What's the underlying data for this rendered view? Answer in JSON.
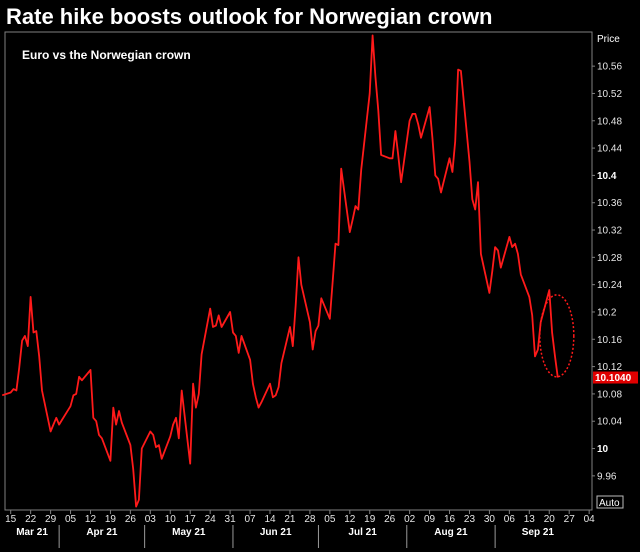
{
  "title": "Rate hike boosts outlook for Norwegian crown",
  "chart_data": {
    "type": "line",
    "annotation": "Euro vs the Norwegian crown",
    "y_axis_title": "Price",
    "ylim": [
      9.91,
      10.61
    ],
    "y_ticks": [
      "9.96",
      "10",
      "10.04",
      "10.08",
      "10.12",
      "10.16",
      "10.2",
      "10.24",
      "10.28",
      "10.32",
      "10.36",
      "10.4",
      "10.44",
      "10.48",
      "10.52",
      "10.56"
    ],
    "y_major_ticks": [
      "10",
      "10.4"
    ],
    "last_value": 10.104,
    "last_value_label": "10.1040",
    "x_start": "2021-03-13",
    "x_end": "2021-10-05",
    "x_ticks": [
      {
        "date": "2021-03-15",
        "label": "15"
      },
      {
        "date": "2021-03-22",
        "label": "22"
      },
      {
        "date": "2021-03-29",
        "label": "29"
      },
      {
        "date": "2021-04-05",
        "label": "05"
      },
      {
        "date": "2021-04-12",
        "label": "12"
      },
      {
        "date": "2021-04-19",
        "label": "19"
      },
      {
        "date": "2021-04-26",
        "label": "26"
      },
      {
        "date": "2021-05-03",
        "label": "03"
      },
      {
        "date": "2021-05-10",
        "label": "10"
      },
      {
        "date": "2021-05-17",
        "label": "17"
      },
      {
        "date": "2021-05-24",
        "label": "24"
      },
      {
        "date": "2021-05-31",
        "label": "31"
      },
      {
        "date": "2021-06-07",
        "label": "07"
      },
      {
        "date": "2021-06-14",
        "label": "14"
      },
      {
        "date": "2021-06-21",
        "label": "21"
      },
      {
        "date": "2021-06-28",
        "label": "28"
      },
      {
        "date": "2021-07-05",
        "label": "05"
      },
      {
        "date": "2021-07-12",
        "label": "12"
      },
      {
        "date": "2021-07-19",
        "label": "19"
      },
      {
        "date": "2021-07-26",
        "label": "26"
      },
      {
        "date": "2021-08-02",
        "label": "02"
      },
      {
        "date": "2021-08-09",
        "label": "09"
      },
      {
        "date": "2021-08-16",
        "label": "16"
      },
      {
        "date": "2021-08-23",
        "label": "23"
      },
      {
        "date": "2021-08-30",
        "label": "30"
      },
      {
        "date": "2021-09-06",
        "label": "06"
      },
      {
        "date": "2021-09-13",
        "label": "13"
      },
      {
        "date": "2021-09-20",
        "label": "20"
      },
      {
        "date": "2021-09-27",
        "label": "27"
      },
      {
        "date": "2021-10-04",
        "label": "04"
      }
    ],
    "months": [
      {
        "label": "Mar 21",
        "start": "2021-03-13",
        "end": "2021-04-01"
      },
      {
        "label": "Apr 21",
        "start": "2021-04-01",
        "end": "2021-05-01"
      },
      {
        "label": "May 21",
        "start": "2021-05-01",
        "end": "2021-06-01"
      },
      {
        "label": "Jun 21",
        "start": "2021-06-01",
        "end": "2021-07-01"
      },
      {
        "label": "Jul 21",
        "start": "2021-07-01",
        "end": "2021-08-01"
      },
      {
        "label": "Aug 21",
        "start": "2021-08-01",
        "end": "2021-09-01"
      },
      {
        "label": "Sep 21",
        "start": "2021-09-01",
        "end": "2021-10-01"
      }
    ],
    "series": [
      {
        "color": "#ff1a1a",
        "points": [
          [
            "2021-03-12",
            10.078
          ],
          [
            "2021-03-15",
            10.082
          ],
          [
            "2021-03-16",
            10.087
          ],
          [
            "2021-03-17",
            10.085
          ],
          [
            "2021-03-18",
            10.118
          ],
          [
            "2021-03-19",
            10.158
          ],
          [
            "2021-03-20",
            10.165
          ],
          [
            "2021-03-21",
            10.15
          ],
          [
            "2021-03-22",
            10.222
          ],
          [
            "2021-03-23",
            10.17
          ],
          [
            "2021-03-24",
            10.172
          ],
          [
            "2021-03-25",
            10.135
          ],
          [
            "2021-03-26",
            10.085
          ],
          [
            "2021-03-29",
            10.025
          ],
          [
            "2021-03-30",
            10.035
          ],
          [
            "2021-03-31",
            10.045
          ],
          [
            "2021-04-01",
            10.035
          ],
          [
            "2021-04-02",
            10.042
          ],
          [
            "2021-04-05",
            10.062
          ],
          [
            "2021-04-06",
            10.078
          ],
          [
            "2021-04-07",
            10.08
          ],
          [
            "2021-04-08",
            10.105
          ],
          [
            "2021-04-09",
            10.1
          ],
          [
            "2021-04-12",
            10.115
          ],
          [
            "2021-04-13",
            10.045
          ],
          [
            "2021-04-14",
            10.04
          ],
          [
            "2021-04-15",
            10.02
          ],
          [
            "2021-04-16",
            10.015
          ],
          [
            "2021-04-19",
            9.982
          ],
          [
            "2021-04-20",
            10.06
          ],
          [
            "2021-04-21",
            10.035
          ],
          [
            "2021-04-22",
            10.055
          ],
          [
            "2021-04-23",
            10.038
          ],
          [
            "2021-04-26",
            10.005
          ],
          [
            "2021-04-27",
            9.97
          ],
          [
            "2021-04-28",
            9.915
          ],
          [
            "2021-04-29",
            9.925
          ],
          [
            "2021-04-30",
            10.0
          ],
          [
            "2021-05-03",
            10.025
          ],
          [
            "2021-05-04",
            10.02
          ],
          [
            "2021-05-05",
            10.002
          ],
          [
            "2021-05-06",
            10.005
          ],
          [
            "2021-05-07",
            9.985
          ],
          [
            "2021-05-10",
            10.018
          ],
          [
            "2021-05-11",
            10.035
          ],
          [
            "2021-05-12",
            10.045
          ],
          [
            "2021-05-13",
            10.015
          ],
          [
            "2021-05-14",
            10.085
          ],
          [
            "2021-05-17",
            9.978
          ],
          [
            "2021-05-18",
            10.095
          ],
          [
            "2021-05-19",
            10.06
          ],
          [
            "2021-05-20",
            10.08
          ],
          [
            "2021-05-21",
            10.138
          ],
          [
            "2021-05-24",
            10.205
          ],
          [
            "2021-05-25",
            10.178
          ],
          [
            "2021-05-26",
            10.18
          ],
          [
            "2021-05-27",
            10.195
          ],
          [
            "2021-05-28",
            10.178
          ],
          [
            "2021-05-31",
            10.2
          ],
          [
            "2021-06-01",
            10.17
          ],
          [
            "2021-06-02",
            10.165
          ],
          [
            "2021-06-03",
            10.14
          ],
          [
            "2021-06-04",
            10.165
          ],
          [
            "2021-06-07",
            10.13
          ],
          [
            "2021-06-08",
            10.095
          ],
          [
            "2021-06-09",
            10.075
          ],
          [
            "2021-06-10",
            10.06
          ],
          [
            "2021-06-11",
            10.068
          ],
          [
            "2021-06-14",
            10.095
          ],
          [
            "2021-06-15",
            10.075
          ],
          [
            "2021-06-16",
            10.078
          ],
          [
            "2021-06-17",
            10.09
          ],
          [
            "2021-06-18",
            10.125
          ],
          [
            "2021-06-21",
            10.178
          ],
          [
            "2021-06-22",
            10.15
          ],
          [
            "2021-06-23",
            10.21
          ],
          [
            "2021-06-24",
            10.28
          ],
          [
            "2021-06-25",
            10.24
          ],
          [
            "2021-06-28",
            10.185
          ],
          [
            "2021-06-29",
            10.145
          ],
          [
            "2021-06-30",
            10.172
          ],
          [
            "2021-07-01",
            10.18
          ],
          [
            "2021-07-02",
            10.22
          ],
          [
            "2021-07-05",
            10.19
          ],
          [
            "2021-07-06",
            10.245
          ],
          [
            "2021-07-07",
            10.3
          ],
          [
            "2021-07-08",
            10.298
          ],
          [
            "2021-07-09",
            10.41
          ],
          [
            "2021-07-12",
            10.317
          ],
          [
            "2021-07-13",
            10.335
          ],
          [
            "2021-07-14",
            10.355
          ],
          [
            "2021-07-15",
            10.35
          ],
          [
            "2021-07-16",
            10.408
          ],
          [
            "2021-07-19",
            10.52
          ],
          [
            "2021-07-20",
            10.605
          ],
          [
            "2021-07-21",
            10.545
          ],
          [
            "2021-07-22",
            10.495
          ],
          [
            "2021-07-23",
            10.43
          ],
          [
            "2021-07-26",
            10.425
          ],
          [
            "2021-07-27",
            10.425
          ],
          [
            "2021-07-28",
            10.465
          ],
          [
            "2021-07-29",
            10.43
          ],
          [
            "2021-07-30",
            10.39
          ],
          [
            "2021-08-02",
            10.48
          ],
          [
            "2021-08-03",
            10.49
          ],
          [
            "2021-08-04",
            10.49
          ],
          [
            "2021-08-05",
            10.475
          ],
          [
            "2021-08-06",
            10.455
          ],
          [
            "2021-08-09",
            10.5
          ],
          [
            "2021-08-10",
            10.455
          ],
          [
            "2021-08-11",
            10.4
          ],
          [
            "2021-08-12",
            10.395
          ],
          [
            "2021-08-13",
            10.375
          ],
          [
            "2021-08-16",
            10.425
          ],
          [
            "2021-08-17",
            10.405
          ],
          [
            "2021-08-18",
            10.45
          ],
          [
            "2021-08-19",
            10.555
          ],
          [
            "2021-08-20",
            10.553
          ],
          [
            "2021-08-23",
            10.42
          ],
          [
            "2021-08-24",
            10.365
          ],
          [
            "2021-08-25",
            10.35
          ],
          [
            "2021-08-26",
            10.39
          ],
          [
            "2021-08-27",
            10.285
          ],
          [
            "2021-08-30",
            10.228
          ],
          [
            "2021-08-31",
            10.26
          ],
          [
            "2021-09-01",
            10.295
          ],
          [
            "2021-09-02",
            10.29
          ],
          [
            "2021-09-03",
            10.265
          ],
          [
            "2021-09-06",
            10.31
          ],
          [
            "2021-09-07",
            10.295
          ],
          [
            "2021-09-08",
            10.3
          ],
          [
            "2021-09-09",
            10.285
          ],
          [
            "2021-09-10",
            10.255
          ],
          [
            "2021-09-13",
            10.222
          ],
          [
            "2021-09-14",
            10.195
          ],
          [
            "2021-09-15",
            10.135
          ],
          [
            "2021-09-16",
            10.145
          ],
          [
            "2021-09-17",
            10.185
          ],
          [
            "2021-09-20",
            10.232
          ],
          [
            "2021-09-21",
            10.17
          ],
          [
            "2021-09-22",
            10.135
          ],
          [
            "2021-09-23",
            10.104
          ]
        ]
      }
    ]
  }
}
